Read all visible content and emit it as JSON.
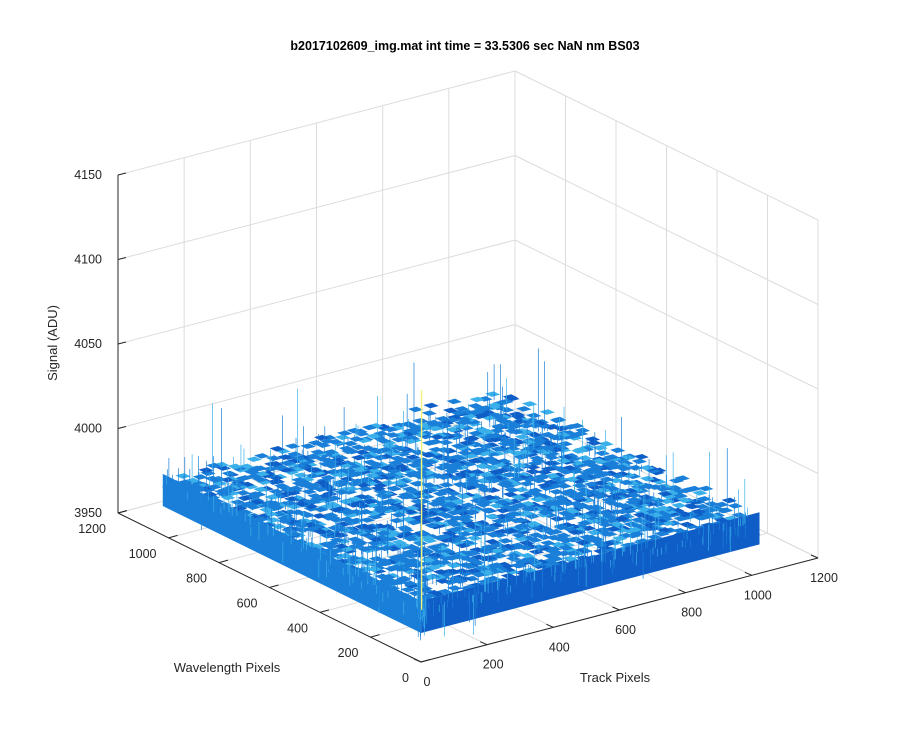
{
  "chart_data": {
    "type": "surface",
    "title": "b2017102609_img.mat int time = 33.5306 sec  NaN nm BS03",
    "xlabel": "Track Pixels",
    "ylabel": "Wavelength Pixels",
    "zlabel": "Signal (ADU)",
    "x_ticks": [
      "0",
      "200",
      "400",
      "600",
      "800",
      "1000",
      "1200"
    ],
    "y_ticks": [
      "0",
      "200",
      "400",
      "600",
      "800",
      "1000",
      "1200"
    ],
    "z_ticks": [
      "3950",
      "4000",
      "4050",
      "4100",
      "4150"
    ],
    "xlim": [
      0,
      1200
    ],
    "ylim": [
      0,
      1200
    ],
    "zlim": [
      3950,
      4150
    ],
    "data_extent": {
      "x": [
        1,
        1024
      ],
      "y": [
        1,
        1024
      ]
    },
    "surface_level": 3980,
    "noise_range": [
      3955,
      4040
    ],
    "grid": true,
    "colors": {
      "surface_main": "#1a7fd8",
      "surface_light": "#3ab0ea",
      "surface_dark": "#0f5ec7",
      "spike": "#f2f27a"
    }
  }
}
